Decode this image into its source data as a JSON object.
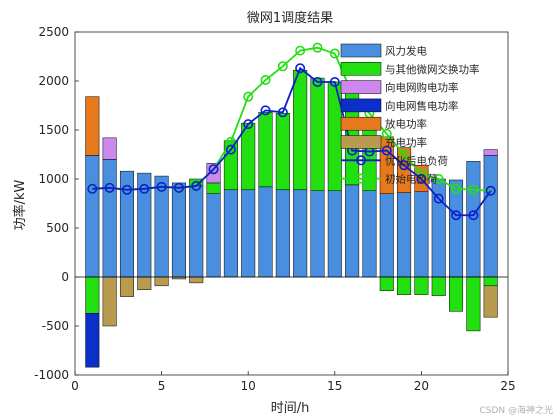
{
  "chart_data": {
    "type": "bar",
    "title": "微网1调度结果",
    "xlabel": "时间/h",
    "ylabel": "功率/kW",
    "xlim": [
      0,
      25
    ],
    "ylim": [
      -1000,
      2500
    ],
    "xticks": [
      0,
      5,
      10,
      15,
      20,
      25
    ],
    "yticks": [
      -1000,
      -500,
      0,
      500,
      1000,
      1500,
      2000,
      2500
    ],
    "grid": false,
    "legend_position": "upper-right",
    "x": [
      1,
      2,
      3,
      4,
      5,
      6,
      7,
      8,
      9,
      10,
      11,
      12,
      13,
      14,
      15,
      16,
      17,
      18,
      19,
      20,
      21,
      22,
      23,
      24
    ],
    "stacked_series": [
      {
        "name": "风力发电",
        "color": "#4a8fdf",
        "values": [
          1240,
          1200,
          1080,
          1060,
          1030,
          960,
          930,
          850,
          890,
          890,
          920,
          890,
          890,
          880,
          880,
          940,
          880,
          850,
          860,
          870,
          1000,
          990,
          1180,
          1240
        ]
      },
      {
        "name": "与其他微网交换功率",
        "color": "#22e010",
        "values": [
          -370,
          0,
          0,
          0,
          0,
          0,
          70,
          110,
          500,
          680,
          760,
          780,
          1220,
          1150,
          1110,
          1060,
          620,
          -140,
          -180,
          -180,
          -190,
          -350,
          -550,
          -90
        ]
      },
      {
        "name": "向电网购电功率",
        "color": "#cc88ee",
        "values": [
          0,
          220,
          0,
          0,
          0,
          0,
          0,
          200,
          0,
          0,
          0,
          0,
          0,
          0,
          0,
          0,
          0,
          0,
          0,
          0,
          0,
          0,
          0,
          60
        ]
      },
      {
        "name": "向电网售电功率",
        "color": "#0b2fc9",
        "values": [
          -550,
          0,
          0,
          0,
          0,
          0,
          0,
          0,
          0,
          0,
          0,
          0,
          0,
          0,
          0,
          0,
          0,
          0,
          0,
          0,
          0,
          0,
          0,
          0
        ]
      },
      {
        "name": "放电功率",
        "color": "#e8781c",
        "values": [
          600,
          0,
          0,
          0,
          0,
          0,
          0,
          0,
          0,
          0,
          0,
          0,
          0,
          0,
          0,
          0,
          0,
          580,
          460,
          270,
          0,
          0,
          0,
          0
        ]
      },
      {
        "name": "充电功率",
        "color": "#b89b4e",
        "values": [
          0,
          -500,
          -200,
          -130,
          -90,
          -20,
          -60,
          0,
          0,
          0,
          0,
          0,
          0,
          0,
          0,
          0,
          0,
          0,
          0,
          0,
          0,
          0,
          0,
          -320
        ]
      }
    ],
    "line_series": [
      {
        "name": "优化后电负荷",
        "color": "#0b1fd0",
        "values": [
          900,
          910,
          890,
          900,
          920,
          910,
          930,
          1100,
          1300,
          1560,
          1700,
          1680,
          2130,
          1990,
          1990,
          1290,
          1280,
          1290,
          1140,
          1000,
          800,
          630,
          630,
          880
        ]
      },
      {
        "name": "初始电负荷",
        "color": "#22e010",
        "values": [
          900,
          910,
          890,
          900,
          920,
          910,
          930,
          1100,
          1380,
          1840,
          2010,
          2150,
          2310,
          2340,
          2280,
          1870,
          1670,
          1460,
          1250,
          1050,
          1000,
          900,
          890,
          880
        ]
      }
    ],
    "watermark": "CSDN @海神之光"
  }
}
